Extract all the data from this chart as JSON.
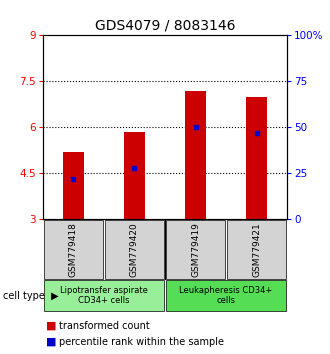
{
  "title": "GDS4079 / 8083146",
  "samples": [
    "GSM779418",
    "GSM779420",
    "GSM779419",
    "GSM779421"
  ],
  "transformed_counts": [
    5.2,
    5.85,
    7.2,
    7.0
  ],
  "percentile_ranks": [
    22,
    28,
    50,
    47
  ],
  "ylim_left": [
    3,
    9
  ],
  "ylim_right": [
    0,
    100
  ],
  "yticks_left": [
    3,
    4.5,
    6,
    7.5,
    9
  ],
  "ytick_labels_left": [
    "3",
    "4.5",
    "6",
    "7.5",
    "9"
  ],
  "yticks_right": [
    0,
    25,
    50,
    75,
    100
  ],
  "ytick_labels_right": [
    "0",
    "25",
    "50",
    "75",
    "100%"
  ],
  "hlines": [
    4.5,
    6.0,
    7.5
  ],
  "bar_color": "#cc0000",
  "dot_color": "#0000cc",
  "bar_width": 0.35,
  "bar_bottom": 3.0,
  "cell_type_groups": [
    {
      "label": "Lipotransfer aspirate\nCD34+ cells",
      "color": "#99ee99"
    },
    {
      "label": "Leukapheresis CD34+\ncells",
      "color": "#55dd55"
    }
  ],
  "cell_type_label": "cell type",
  "legend_bar_label": "transformed count",
  "legend_dot_label": "percentile rank within the sample",
  "title_fontsize": 10,
  "tick_label_fontsize": 7.5,
  "sample_label_fontsize": 6.5,
  "cell_type_fontsize": 6.0,
  "legend_fontsize": 7.0
}
